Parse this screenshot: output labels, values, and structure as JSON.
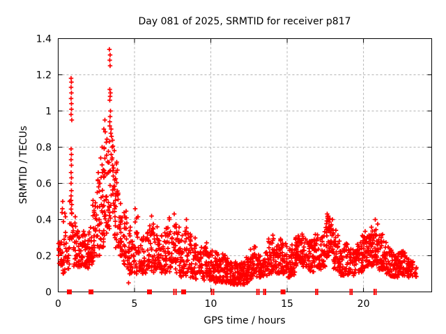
{
  "title": "Day 081 of 2025, SRMTID for receiver p817",
  "chart_data": {
    "type": "scatter",
    "marker": "plus",
    "marker_color": "#ff0000",
    "grid_color": "#b3b3b3",
    "border_color": "#000000",
    "title": "Day 081 of 2025, SRMTID for receiver p817",
    "xlabel": "GPS time / hours",
    "ylabel": "SRMTID / TECUs",
    "xlim": [
      0,
      24.47
    ],
    "ylim": [
      0,
      1.4
    ],
    "grid": true,
    "xticks": {
      "values": [
        0,
        5,
        10,
        15,
        20
      ],
      "labels": [
        "0",
        "5",
        "10",
        "15",
        "20"
      ]
    },
    "yticks": {
      "values": [
        0,
        0.2,
        0.4,
        0.6,
        0.8,
        1.0,
        1.2,
        1.4
      ],
      "labels": [
        "0",
        "0.2",
        "0.4",
        "0.6",
        "0.8",
        "1",
        "1.2",
        "1.4"
      ]
    },
    "series_name": "SRMTID",
    "envelope_bins": [
      [
        0.0,
        0.14,
        0.28,
        16
      ],
      [
        0.25,
        0.09,
        0.47,
        22
      ],
      [
        0.5,
        0.12,
        0.33,
        14
      ],
      [
        0.75,
        0.28,
        0.52,
        18
      ],
      [
        1.0,
        0.14,
        0.42,
        22
      ],
      [
        1.25,
        0.13,
        0.38,
        22
      ],
      [
        1.5,
        0.14,
        0.34,
        24
      ],
      [
        1.75,
        0.13,
        0.32,
        24
      ],
      [
        2.0,
        0.15,
        0.38,
        24
      ],
      [
        2.25,
        0.17,
        0.52,
        24
      ],
      [
        2.5,
        0.2,
        0.62,
        24
      ],
      [
        2.75,
        0.24,
        0.72,
        26
      ],
      [
        3.0,
        0.3,
        0.9,
        26
      ],
      [
        3.25,
        0.35,
        0.92,
        24
      ],
      [
        3.5,
        0.3,
        0.85,
        24
      ],
      [
        3.75,
        0.24,
        0.72,
        24
      ],
      [
        4.0,
        0.2,
        0.5,
        24
      ],
      [
        4.25,
        0.15,
        0.45,
        24
      ],
      [
        4.5,
        0.1,
        0.36,
        22
      ],
      [
        4.75,
        0.1,
        0.3,
        20
      ],
      [
        5.0,
        0.1,
        0.42,
        20
      ],
      [
        5.25,
        0.1,
        0.3,
        20
      ],
      [
        5.5,
        0.1,
        0.32,
        20
      ],
      [
        5.75,
        0.11,
        0.36,
        20
      ],
      [
        6.0,
        0.1,
        0.38,
        20
      ],
      [
        6.25,
        0.1,
        0.36,
        20
      ],
      [
        6.5,
        0.09,
        0.3,
        20
      ],
      [
        6.75,
        0.1,
        0.33,
        20
      ],
      [
        7.0,
        0.1,
        0.37,
        22
      ],
      [
        7.25,
        0.1,
        0.41,
        22
      ],
      [
        7.5,
        0.11,
        0.38,
        22
      ],
      [
        7.75,
        0.1,
        0.36,
        22
      ],
      [
        8.0,
        0.08,
        0.32,
        20
      ],
      [
        8.25,
        0.09,
        0.38,
        22
      ],
      [
        8.5,
        0.08,
        0.35,
        22
      ],
      [
        8.75,
        0.08,
        0.3,
        20
      ],
      [
        9.0,
        0.07,
        0.27,
        20
      ],
      [
        9.25,
        0.07,
        0.25,
        20
      ],
      [
        9.5,
        0.06,
        0.28,
        22
      ],
      [
        9.75,
        0.06,
        0.22,
        22
      ],
      [
        10.0,
        0.06,
        0.24,
        22
      ],
      [
        10.25,
        0.05,
        0.22,
        22
      ],
      [
        10.5,
        0.05,
        0.2,
        22
      ],
      [
        10.75,
        0.05,
        0.22,
        22
      ],
      [
        11.0,
        0.05,
        0.19,
        22
      ],
      [
        11.25,
        0.04,
        0.17,
        24
      ],
      [
        11.5,
        0.04,
        0.17,
        26
      ],
      [
        11.75,
        0.04,
        0.15,
        26
      ],
      [
        12.0,
        0.04,
        0.17,
        26
      ],
      [
        12.25,
        0.05,
        0.19,
        26
      ],
      [
        12.5,
        0.07,
        0.24,
        22
      ],
      [
        12.75,
        0.09,
        0.26,
        22
      ],
      [
        13.0,
        0.08,
        0.21,
        20
      ],
      [
        13.25,
        0.08,
        0.2,
        20
      ],
      [
        13.5,
        0.09,
        0.24,
        20
      ],
      [
        13.75,
        0.1,
        0.3,
        22
      ],
      [
        14.0,
        0.11,
        0.34,
        22
      ],
      [
        14.25,
        0.1,
        0.29,
        22
      ],
      [
        14.5,
        0.11,
        0.31,
        22
      ],
      [
        14.75,
        0.1,
        0.27,
        22
      ],
      [
        15.0,
        0.08,
        0.24,
        22
      ],
      [
        15.25,
        0.09,
        0.27,
        22
      ],
      [
        15.5,
        0.14,
        0.31,
        26
      ],
      [
        15.75,
        0.16,
        0.32,
        26
      ],
      [
        16.0,
        0.14,
        0.31,
        26
      ],
      [
        16.25,
        0.12,
        0.29,
        22
      ],
      [
        16.5,
        0.11,
        0.29,
        22
      ],
      [
        16.75,
        0.14,
        0.32,
        22
      ],
      [
        17.0,
        0.12,
        0.29,
        22
      ],
      [
        17.25,
        0.14,
        0.34,
        22
      ],
      [
        17.5,
        0.19,
        0.42,
        26
      ],
      [
        17.75,
        0.19,
        0.41,
        24
      ],
      [
        18.0,
        0.12,
        0.34,
        24
      ],
      [
        18.25,
        0.11,
        0.32,
        24
      ],
      [
        18.5,
        0.08,
        0.25,
        22
      ],
      [
        18.75,
        0.09,
        0.27,
        22
      ],
      [
        19.0,
        0.1,
        0.25,
        20
      ],
      [
        19.25,
        0.08,
        0.24,
        20
      ],
      [
        19.5,
        0.1,
        0.27,
        22
      ],
      [
        19.75,
        0.11,
        0.32,
        22
      ],
      [
        20.0,
        0.12,
        0.34,
        22
      ],
      [
        20.25,
        0.14,
        0.32,
        24
      ],
      [
        20.5,
        0.14,
        0.36,
        26
      ],
      [
        20.75,
        0.15,
        0.39,
        26
      ],
      [
        21.0,
        0.12,
        0.32,
        24
      ],
      [
        21.25,
        0.12,
        0.29,
        22
      ],
      [
        21.5,
        0.1,
        0.27,
        22
      ],
      [
        21.75,
        0.08,
        0.24,
        22
      ],
      [
        22.0,
        0.08,
        0.21,
        26
      ],
      [
        22.25,
        0.09,
        0.24,
        26
      ],
      [
        22.5,
        0.09,
        0.24,
        22
      ],
      [
        22.75,
        0.08,
        0.19,
        22
      ],
      [
        23.0,
        0.08,
        0.17,
        18
      ],
      [
        23.25,
        0.08,
        0.14,
        8
      ]
    ],
    "outlier_points": [
      [
        0.05,
        0.24
      ],
      [
        0.3,
        0.5
      ],
      [
        0.28,
        0.46
      ],
      [
        0.84,
        0.53
      ],
      [
        0.86,
        0.56
      ],
      [
        0.85,
        0.6
      ],
      [
        0.87,
        0.63
      ],
      [
        0.84,
        0.66
      ],
      [
        0.86,
        0.7
      ],
      [
        0.85,
        0.73
      ],
      [
        0.87,
        0.76
      ],
      [
        0.85,
        0.79
      ],
      [
        0.88,
        0.95
      ],
      [
        0.85,
        0.98
      ],
      [
        0.86,
        1.01
      ],
      [
        0.87,
        1.04
      ],
      [
        0.85,
        1.07
      ],
      [
        0.86,
        1.1
      ],
      [
        0.84,
        1.13
      ],
      [
        0.86,
        1.16
      ],
      [
        0.85,
        1.18
      ],
      [
        2.62,
        0.66
      ],
      [
        2.78,
        0.74
      ],
      [
        2.88,
        0.8
      ],
      [
        2.98,
        0.9
      ],
      [
        3.05,
        0.95
      ],
      [
        3.36,
        1.34
      ],
      [
        3.39,
        1.31
      ],
      [
        3.37,
        1.28
      ],
      [
        3.41,
        1.25
      ],
      [
        3.38,
        1.12
      ],
      [
        3.42,
        1.1
      ],
      [
        3.4,
        1.08
      ],
      [
        3.37,
        1.06
      ],
      [
        3.43,
        1.0
      ],
      [
        3.4,
        0.97
      ],
      [
        3.38,
        0.94
      ],
      [
        3.46,
        0.9
      ],
      [
        3.5,
        0.86
      ],
      [
        3.53,
        0.8
      ],
      [
        3.48,
        0.76
      ],
      [
        3.56,
        0.7
      ],
      [
        3.6,
        0.64
      ],
      [
        3.63,
        0.58
      ],
      [
        3.58,
        0.54
      ],
      [
        4.62,
        0.05
      ],
      [
        5.04,
        0.46
      ],
      [
        6.12,
        0.42
      ],
      [
        7.28,
        0.41
      ],
      [
        7.6,
        0.43
      ],
      [
        8.4,
        0.4
      ],
      [
        17.63,
        0.43
      ],
      [
        17.7,
        0.42
      ],
      [
        20.78,
        0.4
      ]
    ],
    "axis_marker_squares_h": [
      0.73,
      2.15,
      5.98,
      8.22,
      14.73
    ],
    "axis_marker_tick_pairs_h": [
      [
        7.58,
        7.72
      ],
      [
        10.05,
        10.18
      ],
      [
        13.02,
        13.15
      ],
      [
        13.47,
        13.58
      ],
      [
        16.88,
        16.99
      ],
      [
        19.13,
        19.25
      ],
      [
        20.7,
        20.82
      ]
    ]
  }
}
